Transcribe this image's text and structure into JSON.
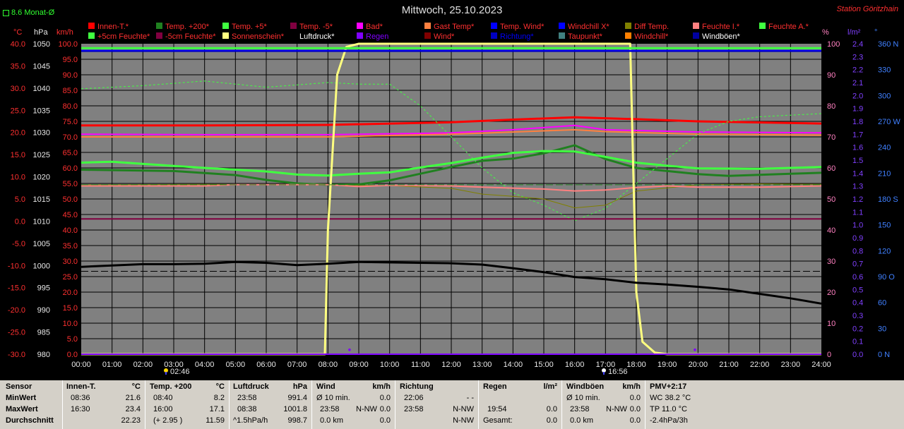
{
  "header": {
    "title": "Mittwoch, 25.10.2023",
    "station": "Station Göritzhain",
    "average_label": "8.6 Monat-Ø"
  },
  "legend": {
    "row1": [
      {
        "label": "Innen-T.*",
        "color": "#ff0000"
      },
      {
        "label": "Temp. +200*",
        "color": "#208020"
      },
      {
        "label": "Temp. +5*",
        "color": "#40ff40"
      },
      {
        "label": "Temp. -5*",
        "color": "#800040"
      },
      {
        "label": "Bad*",
        "color": "#ff00ff"
      },
      {
        "label": "Gast Temp*",
        "color": "#ff8040"
      },
      {
        "label": "Temp. Wind*",
        "color": "#0000ff"
      },
      {
        "label": "Windchill X*",
        "color": "#0000ff"
      },
      {
        "label": "Diff Temp.",
        "color": "#808000"
      },
      {
        "label": "Feuchte I.*",
        "color": "#ff8080"
      },
      {
        "label": "Feuchte A.*",
        "color": "#40ff40"
      }
    ],
    "row2": [
      {
        "label": "+5cm Feuchte*",
        "color": "#40ff40"
      },
      {
        "label": "-5cm Feuchte*",
        "color": "#800040"
      },
      {
        "label": "Sonnenschein*",
        "color": "#ffff80"
      },
      {
        "label": "Luftdruck*",
        "color": "#000000"
      },
      {
        "label": "Regen",
        "color": "#8000ff"
      },
      {
        "label": "Wind*",
        "color": "#800000"
      },
      {
        "label": "Richtung*",
        "color": "#0000c0"
      },
      {
        "label": "Taupunkt*",
        "color": "#408080"
      },
      {
        "label": "Windchill*",
        "color": "#ff8000"
      },
      {
        "label": "Windböen*",
        "color": "#0000a0"
      }
    ],
    "row1_text_colors": [
      "#ff3030",
      "#ff3030",
      "#ff3030",
      "#ff3030",
      "#ff3030",
      "#ff3030",
      "#ff3030",
      "#ff3030",
      "#ff3030",
      "#ff3030",
      "#ff3030"
    ],
    "row2_text_colors": [
      "#ff3030",
      "#ff3030",
      "#ff3030",
      "#ffffff",
      "#8000ff",
      "#ff3030",
      "#0000ff",
      "#ff3030",
      "#ff3030",
      "#ffffff"
    ]
  },
  "units": {
    "celsius": "°C",
    "hpa": "hPa",
    "kmh": "km/h",
    "percent": "%",
    "rain": "l/m²",
    "dir": "°"
  },
  "markers": {
    "sunrise": "02:46",
    "sunset": "16:56"
  },
  "chart_data": {
    "type": "line",
    "x_ticks": [
      "00:00",
      "01:00",
      "02:00",
      "03:00",
      "04:00",
      "05:00",
      "06:00",
      "07:00",
      "08:00",
      "09:00",
      "10:00",
      "11:00",
      "12:00",
      "13:00",
      "14:00",
      "15:00",
      "16:00",
      "17:00",
      "18:00",
      "19:00",
      "20:00",
      "21:00",
      "22:00",
      "23:00",
      "24:00"
    ],
    "axes": {
      "temp_c": {
        "ticks": [
          "40.0",
          "35.0",
          "30.0",
          "25.0",
          "20.0",
          "15.0",
          "10.0",
          "5.0",
          "0.0",
          "-5.0",
          "-10.0",
          "-15.0",
          "-20.0",
          "-25.0",
          "-30.0"
        ],
        "ylim": [
          -30,
          40
        ]
      },
      "pressure_hpa": {
        "ticks": [
          "1050",
          "1045",
          "1040",
          "1035",
          "1030",
          "1025",
          "1020",
          "1015",
          "1010",
          "1005",
          "1000",
          "995",
          "990",
          "985",
          "980"
        ],
        "ylim": [
          980,
          1050
        ]
      },
      "wind_kmh": {
        "ticks": [
          "100.0",
          "95.0",
          "90.0",
          "85.0",
          "80.0",
          "75.0",
          "70.0",
          "65.0",
          "60.0",
          "55.0",
          "50.0",
          "45.0",
          "40.0",
          "35.0",
          "30.0",
          "25.0",
          "20.0",
          "15.0",
          "10.0",
          "5.0",
          "0.0"
        ],
        "ylim": [
          0,
          100
        ]
      },
      "percent": {
        "ticks": [
          "100",
          "90",
          "80",
          "70",
          "60",
          "50",
          "40",
          "30",
          "20",
          "10",
          "0"
        ],
        "ylim": [
          0,
          100
        ]
      },
      "rain_lm2": {
        "ticks": [
          "2.4",
          "2.3",
          "2.2",
          "2.1",
          "2.0",
          "1.9",
          "1.8",
          "1.7",
          "1.6",
          "1.5",
          "1.4",
          "1.3",
          "1.2",
          "1.1",
          "1.0",
          "0.9",
          "0.8",
          "0.7",
          "0.6",
          "0.5",
          "0.4",
          "0.3",
          "0.2",
          "0.1",
          "0.0"
        ],
        "ylim": [
          0,
          2.5
        ]
      },
      "direction": {
        "ticks": [
          "360 N",
          "330",
          "300",
          "270 W",
          "240",
          "210",
          "180 S",
          "150",
          "120",
          "90 O",
          "60",
          "30",
          "0 N"
        ],
        "ylim": [
          0,
          360
        ]
      }
    },
    "series": [
      {
        "name": "Innen-T.*",
        "axis": "temp_c",
        "color": "#ff0000",
        "width": 3,
        "x": [
          0,
          4,
          8,
          12,
          14,
          16,
          18,
          20,
          24
        ],
        "y": [
          21.6,
          21.6,
          21.7,
          22.3,
          22.9,
          23.4,
          23.0,
          22.5,
          22.0
        ]
      },
      {
        "name": "Bad*",
        "axis": "temp_c",
        "color": "#ff00ff",
        "width": 2,
        "x": [
          0,
          4,
          8,
          12,
          14,
          16,
          17,
          20,
          24
        ],
        "y": [
          19.6,
          19.5,
          19.5,
          19.9,
          20.6,
          21.6,
          20.6,
          20.1,
          19.9
        ]
      },
      {
        "name": "Gast Temp*",
        "axis": "temp_c",
        "color": "#ff8040",
        "width": 2,
        "x": [
          0,
          4,
          8,
          12,
          14,
          16,
          17,
          20,
          24
        ],
        "y": [
          19.0,
          19.0,
          19.0,
          19.6,
          20.1,
          20.6,
          20.2,
          19.6,
          19.4
        ]
      },
      {
        "name": "Temp. +200*",
        "axis": "temp_c",
        "color": "#208020",
        "width": 3,
        "x": [
          0,
          3,
          5,
          6,
          7,
          8,
          9,
          10,
          11,
          12,
          13,
          14,
          15,
          16,
          17,
          18,
          19,
          20,
          21,
          23,
          24
        ],
        "y": [
          11.6,
          11.3,
          10.4,
          9.3,
          8.5,
          8.2,
          8.3,
          9.2,
          10.7,
          12.2,
          13.6,
          14.1,
          15.3,
          17.1,
          14.0,
          12.0,
          11.3,
          10.6,
          10.2,
          10.7,
          10.9
        ]
      },
      {
        "name": "Temp. +5*",
        "axis": "temp_c",
        "color": "#40ff40",
        "width": 3,
        "x": [
          0,
          1,
          2,
          4,
          6,
          7,
          8,
          9,
          10,
          11,
          12,
          13,
          14,
          15,
          16,
          17,
          18,
          19,
          20,
          22,
          24
        ],
        "y": [
          13.2,
          13.4,
          12.9,
          12.0,
          11.2,
          10.5,
          10.3,
          10.7,
          11.0,
          12.1,
          13.1,
          14.3,
          15.4,
          15.8,
          15.7,
          14.5,
          13.2,
          12.5,
          11.9,
          11.8,
          12.2
        ]
      },
      {
        "name": "Feuchte A.*",
        "axis": "percent",
        "color": "#40ff40",
        "width": 1,
        "dash": "3,3",
        "x": [
          0,
          2,
          4,
          6,
          8,
          9,
          10,
          11,
          12,
          13,
          14,
          15,
          16,
          17,
          18,
          19,
          20,
          21,
          22,
          23,
          24
        ],
        "y": [
          85.5,
          86.5,
          88,
          86,
          87.5,
          87,
          87,
          80,
          70,
          60,
          52,
          48,
          43,
          47,
          55,
          63,
          71,
          75,
          76.5,
          77,
          77.5
        ]
      },
      {
        "name": "Diff Temp.",
        "axis": "temp_c",
        "color": "#808000",
        "width": 1,
        "x": [
          0,
          4,
          8,
          10,
          12,
          13,
          14,
          15,
          16,
          17,
          18,
          20,
          22,
          24
        ],
        "y": [
          8.2,
          8.3,
          8.2,
          8.0,
          7.4,
          6.1,
          5.6,
          5.0,
          3.0,
          3.6,
          6.8,
          8.2,
          8.4,
          8.3
        ]
      },
      {
        "name": "Feuchte I.*",
        "axis": "percent",
        "color": "#ff8080",
        "width": 2,
        "x": [
          0,
          4,
          5,
          8,
          9,
          10,
          12,
          13,
          14,
          15,
          16,
          17,
          18,
          19,
          20,
          22,
          24
        ],
        "y": [
          54.2,
          54.2,
          54.6,
          54.6,
          54.0,
          54.4,
          54.2,
          53.8,
          53.5,
          53.2,
          52.6,
          52.9,
          53.7,
          54.2,
          53.8,
          53.8,
          54.2
        ]
      },
      {
        "name": "Temp. -5*",
        "axis": "temp_c",
        "color": "#800040",
        "width": 2,
        "x": [
          0,
          24
        ],
        "y": [
          0.5,
          0.5
        ]
      },
      {
        "name": "Sonnenschein*",
        "axis": "percent",
        "color": "#ffff80",
        "width": 3,
        "x": [
          0,
          7.9,
          8.0,
          8.3,
          8.6,
          9.0,
          17.8,
          17.9,
          18.0,
          18.2,
          18.6,
          19.0,
          24
        ],
        "y": [
          0,
          0,
          40,
          90,
          99,
          100,
          100,
          60,
          20,
          4,
          0.5,
          0,
          0
        ]
      },
      {
        "name": "Luftdruck*",
        "axis": "pressure_hpa",
        "color": "#000000",
        "width": 3,
        "x": [
          0,
          1,
          2,
          3,
          4,
          5,
          6,
          7,
          8,
          9,
          10,
          11,
          12,
          13,
          14,
          15,
          16,
          17,
          18,
          19,
          20,
          21,
          22,
          23,
          24
        ],
        "y": [
          999.7,
          1000.0,
          1000.3,
          1000.3,
          1000.4,
          1000.8,
          1000.6,
          1000.1,
          1000.4,
          1000.8,
          1000.7,
          1000.6,
          1000.5,
          1000.2,
          999.4,
          998.5,
          997.4,
          996.9,
          996.1,
          995.7,
          995.2,
          994.6,
          993.6,
          992.6,
          991.4
        ]
      },
      {
        "name": "Temp. Wind*",
        "axis": "temp_c",
        "color": "#0000ff",
        "width": 3,
        "x": [
          0,
          24
        ],
        "y": [
          38.4,
          38.4
        ]
      },
      {
        "name": "Windböen*",
        "axis": "temp_c",
        "color": "#0000a0",
        "width": 1,
        "x": [
          0,
          24
        ],
        "y": [
          38.3,
          38.3
        ]
      },
      {
        "name": "Feuchte A. (top)",
        "axis": "temp_c",
        "color": "#40ff40",
        "width": 3,
        "x": [
          0,
          24
        ],
        "y": [
          39.0,
          39.0
        ]
      },
      {
        "name": "Regen",
        "axis": "rain_lm2",
        "color": "#8000ff",
        "width": 2,
        "x": [
          0,
          24
        ],
        "y": [
          0,
          0
        ]
      },
      {
        "name": "Taupunkt ref",
        "axis": "temp_c",
        "color": "#208020",
        "width": 1,
        "dash": "10,4",
        "x": [
          0,
          24
        ],
        "y": [
          8.2,
          8.2
        ]
      },
      {
        "name": "Luftdruck ref",
        "axis": "pressure_hpa",
        "color": "#000000",
        "width": 1,
        "dash": "10,4",
        "x": [
          0,
          24
        ],
        "y": [
          998.7,
          998.7
        ]
      }
    ],
    "rain_points": [
      {
        "x": 8.7,
        "y": 0.03
      },
      {
        "x": 19.9,
        "y": 0.03
      }
    ]
  },
  "stats": {
    "labels": {
      "sensor": "Sensor",
      "min": "MinWert",
      "max": "MaxWert",
      "avg": "Durchschnitt"
    },
    "innen": {
      "title": "Innen-T.",
      "unit": "°C",
      "min_time": "08:36",
      "min": "21.6",
      "max_time": "16:30",
      "max": "23.4",
      "avg": "22.23"
    },
    "temp200": {
      "title": "Temp. +200",
      "unit": "°C",
      "min_time": "08:40",
      "min": "8.2",
      "max_time": "16:00",
      "max": "17.1",
      "avg_note": "(+ 2.95 )",
      "avg": "11.59"
    },
    "luftdruck": {
      "title": "Luftdruck",
      "unit": "hPa",
      "min_time": "23:58",
      "min": "991.4",
      "max_time": "08:38",
      "max": "1001.8",
      "avg_note": "^1.5hPa/h",
      "avg": "998.7"
    },
    "wind": {
      "title": "Wind",
      "unit": "km/h",
      "r1_label": "Ø 10 min.",
      "r1": "0.0",
      "r2_time": "23:58",
      "r2_dir": "N-NW",
      "r2": "0.0",
      "r3_label": "0.0 km",
      "r3": "0.0"
    },
    "richtung": {
      "title": "Richtung",
      "r1_time": "22:06",
      "r1": "- -",
      "r2_time": "23:58",
      "r2": "N-NW",
      "r3": "N-NW"
    },
    "regen": {
      "title": "Regen",
      "unit": "l/m²",
      "r2_time": "19:54",
      "r2": "0.0",
      "r3_label": "Gesamt:",
      "r3": "0.0"
    },
    "windboeen": {
      "title": "Windböen",
      "unit": "km/h",
      "r1_label": "Ø 10 min.",
      "r1": "0.0",
      "r2_time": "23:58",
      "r2_dir": "N-NW",
      "r2": "0.0",
      "r3_label": "0.0 km",
      "r3": "0.0"
    },
    "pmv": {
      "title": "PMV+2:17",
      "r1": "WC 38.2 °C",
      "r2": "TP 11.0 °C",
      "r3": "-2.4hPa/3h"
    }
  }
}
